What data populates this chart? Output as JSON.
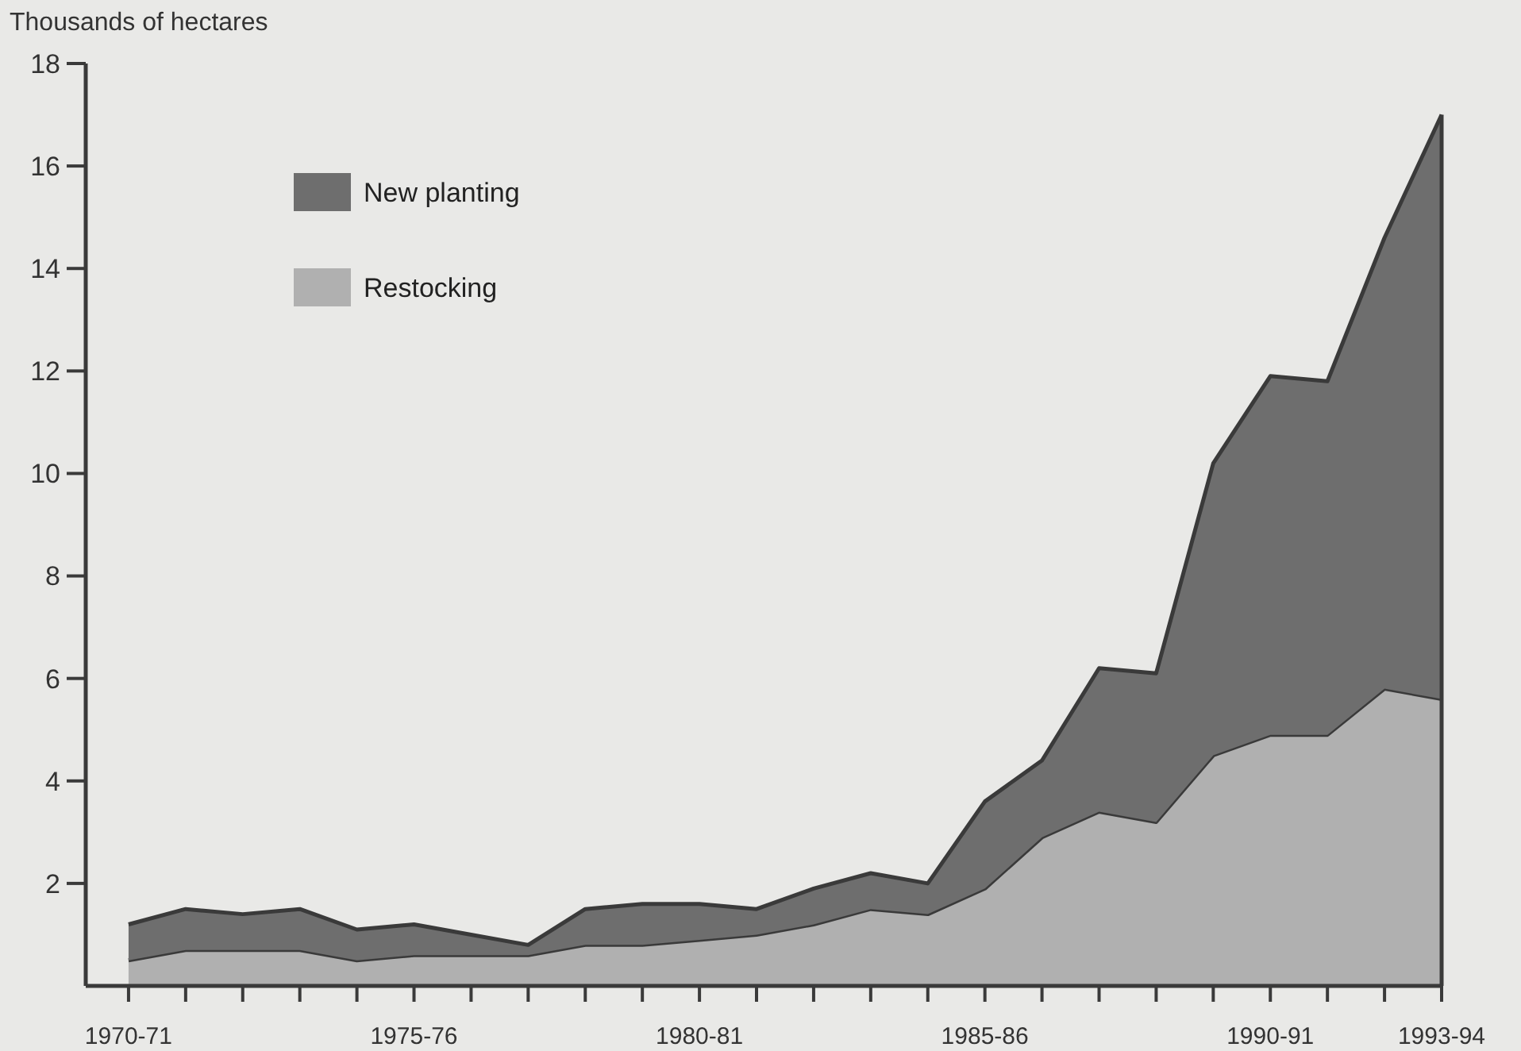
{
  "chart_data": {
    "type": "area",
    "stacked": true,
    "ylabel": "Thousands of hectares",
    "categories": [
      "1970-71",
      null,
      null,
      null,
      null,
      "1975-76",
      null,
      null,
      null,
      null,
      "1980-81",
      null,
      null,
      null,
      null,
      "1985-86",
      null,
      null,
      null,
      null,
      "1990-91",
      null,
      null,
      "1993-94"
    ],
    "series": [
      {
        "name": "Restocking",
        "color": "#b0b0b0",
        "values": [
          0.5,
          0.7,
          0.7,
          0.7,
          0.5,
          0.6,
          0.6,
          0.6,
          0.8,
          0.8,
          0.9,
          1.0,
          1.2,
          1.5,
          1.4,
          1.9,
          2.9,
          3.4,
          3.2,
          4.5,
          4.9,
          4.9,
          5.8,
          5.6
        ]
      },
      {
        "name": "New planting",
        "color": "#6e6e6e",
        "values": [
          0.7,
          0.8,
          0.7,
          0.8,
          0.6,
          0.6,
          0.4,
          0.2,
          0.7,
          0.8,
          0.7,
          0.5,
          0.7,
          0.7,
          0.6,
          1.7,
          1.5,
          2.8,
          2.9,
          5.7,
          7.0,
          6.9,
          8.8,
          11.4
        ]
      }
    ],
    "ylim": [
      0,
      18
    ],
    "yticks": [
      2,
      4,
      6,
      8,
      10,
      12,
      14,
      16,
      18
    ],
    "grid": false,
    "legend": "top left"
  }
}
